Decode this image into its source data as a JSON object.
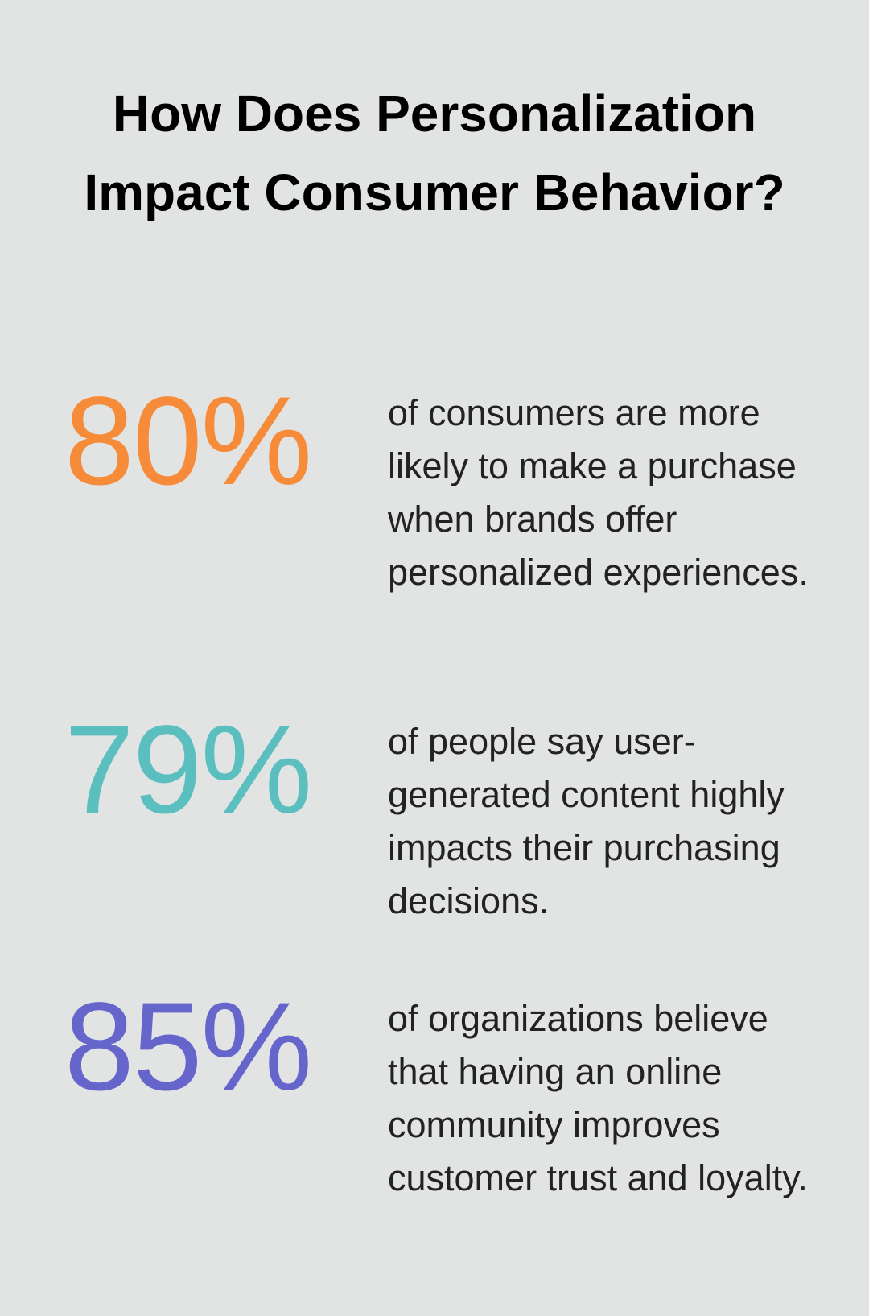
{
  "title": "How Does Personalization Impact Consumer Behavior?",
  "stats": [
    {
      "value": "80%",
      "text": "of consumers are more likely to make a purchase when brands offer personalized experiences.",
      "color": "#f68b3a"
    },
    {
      "value": "79%",
      "text": "of people say user-generated content highly impacts their purchasing decisions.",
      "color": "#5bbfc0"
    },
    {
      "value": "85%",
      "text": "of organizations believe that having an online community improves customer trust and loyalty.",
      "color": "#6565cc"
    }
  ]
}
